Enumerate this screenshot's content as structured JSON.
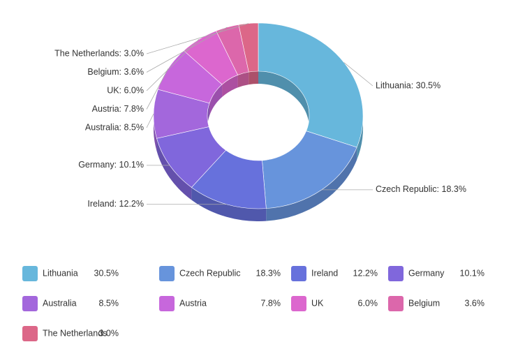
{
  "chart_data": {
    "type": "donut3d",
    "categories": [
      "Lithuania",
      "Czech Republic",
      "Ireland",
      "Germany",
      "Australia",
      "Austria",
      "UK",
      "Belgium",
      "The Netherlands"
    ],
    "values": [
      30.5,
      18.3,
      12.2,
      10.1,
      8.5,
      7.8,
      6.0,
      3.6,
      3.0
    ],
    "value_labels": [
      "30.5%",
      "18.3%",
      "12.2%",
      "10.1%",
      "8.5%",
      "7.8%",
      "6.0%",
      "3.6%",
      "3.0%"
    ],
    "slice_labels": [
      "Lithuania: 30.5%",
      "Czech Republic: 18.3%",
      "Ireland: 12.2%",
      "Germany: 10.1%",
      "Australia: 8.5%",
      "Austria: 7.8%",
      "UK: 6.0%",
      "Belgium: 3.6%",
      "The Netherlands: 3.0%"
    ],
    "colors": [
      "#67b7dc",
      "#6794dc",
      "#6771dc",
      "#8067dc",
      "#a367dc",
      "#c767dc",
      "#dc67ce",
      "#dc67ab",
      "#dc6788"
    ]
  }
}
